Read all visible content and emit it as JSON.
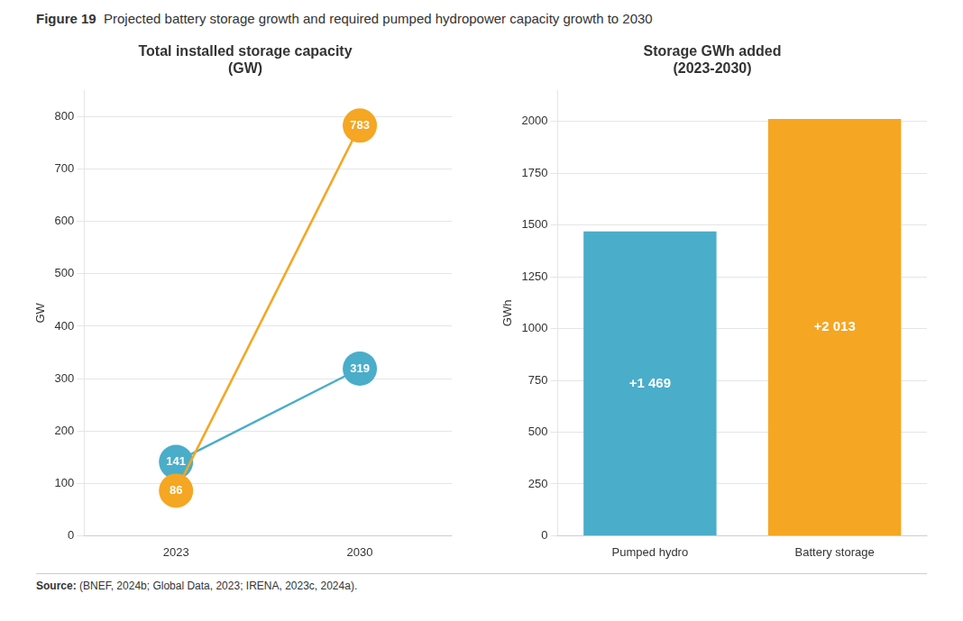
{
  "title": "Figure 19",
  "subtitle": "Projected battery storage growth and required pumped hydropower capacity growth to 2030",
  "source_label": "Source:",
  "source": "(BNEF, 2024b; Global Data, 2023; IRENA, 2023c, 2024a).",
  "chart_data": [
    {
      "type": "line",
      "title": [
        "Total installed storage capacity",
        "(GW)"
      ],
      "ylabel": "GW",
      "categories": [
        "2023",
        "2030"
      ],
      "series": [
        {
          "color": "#F5A623",
          "values": [
            86,
            783
          ]
        },
        {
          "color": "#4AADC9",
          "values": [
            141,
            319
          ]
        }
      ],
      "marker": "circle",
      "data_labels": true,
      "ylim": [
        0,
        850
      ],
      "yticks": [
        0,
        100,
        200,
        300,
        400,
        500,
        600,
        700,
        800
      ],
      "grid": true
    },
    {
      "type": "bar",
      "title": [
        "Storage GWh added",
        "(2023-2030)"
      ],
      "ylabel": "GWh",
      "categories": [
        "Pumped hydro",
        "Battery storage"
      ],
      "values": [
        1469,
        2013
      ],
      "value_labels": [
        "+1 469",
        "+2 013"
      ],
      "colors": [
        "#4AADC9",
        "#F5A623"
      ],
      "data_labels": true,
      "ylim": [
        0,
        2150
      ],
      "yticks": [
        0,
        250,
        500,
        750,
        1000,
        1250,
        1500,
        1750,
        2000
      ],
      "grid": true
    }
  ]
}
